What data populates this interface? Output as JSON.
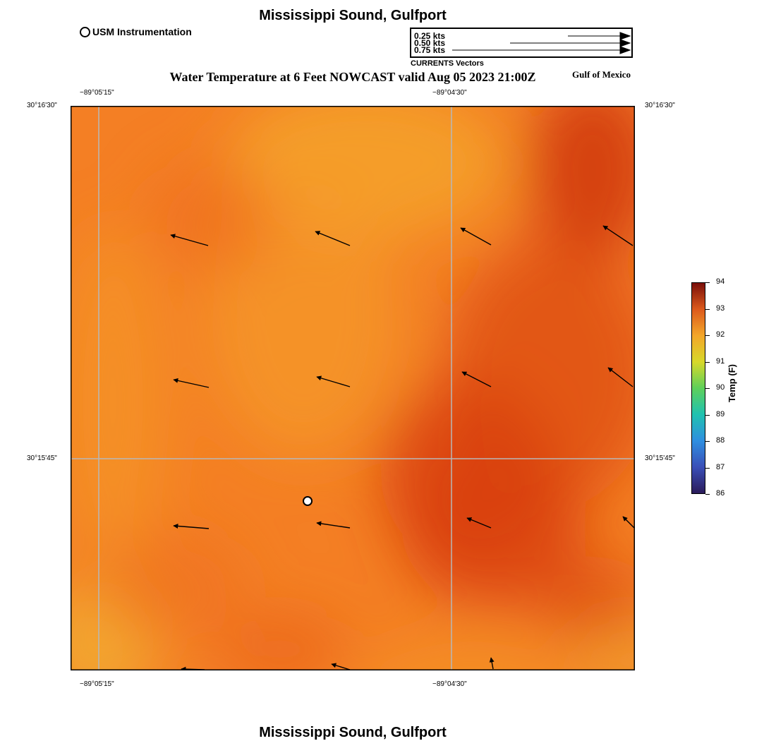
{
  "header": {
    "station_title": "Mississippi Sound, Gulfport",
    "main_title": "Water Temperature at 6 Feet NOWCAST valid Aug 05 2023 21:00Z",
    "region_label": "Gulf of Mexico"
  },
  "legend": {
    "usm_label": "USM Instrumentation",
    "vectors": [
      {
        "label": "0.25 kts",
        "speed_kts": 0.25
      },
      {
        "label": "0.50 kts",
        "speed_kts": 0.5
      },
      {
        "label": "0.75 kts",
        "speed_kts": 0.75
      }
    ],
    "vectors_caption": "CURRENTS Vectors"
  },
  "axes": {
    "top_ticks": [
      "−89°05'15\"",
      "−89°04'30\""
    ],
    "bottom_ticks": [
      "−89°05'15\"",
      "−89°04'30\""
    ],
    "left_ticks": [
      "30°16'30\"",
      "30°15'45\""
    ],
    "right_ticks": [
      "30°16'30\"",
      "30°15'45\""
    ]
  },
  "colorbar": {
    "title": "Temp (F)",
    "min": 86,
    "max": 94,
    "labels": [
      "94",
      "93",
      "92",
      "91",
      "90",
      "89",
      "88",
      "87",
      "86"
    ]
  },
  "colors": {
    "field_base": "#f47f24",
    "field_warm": "#d8400c",
    "field_cool": "#f5a22c",
    "grid": "#b8b8b8",
    "arrow": "#000000"
  },
  "footer": {
    "station_title": "Mississippi Sound, Gulfport"
  }
}
